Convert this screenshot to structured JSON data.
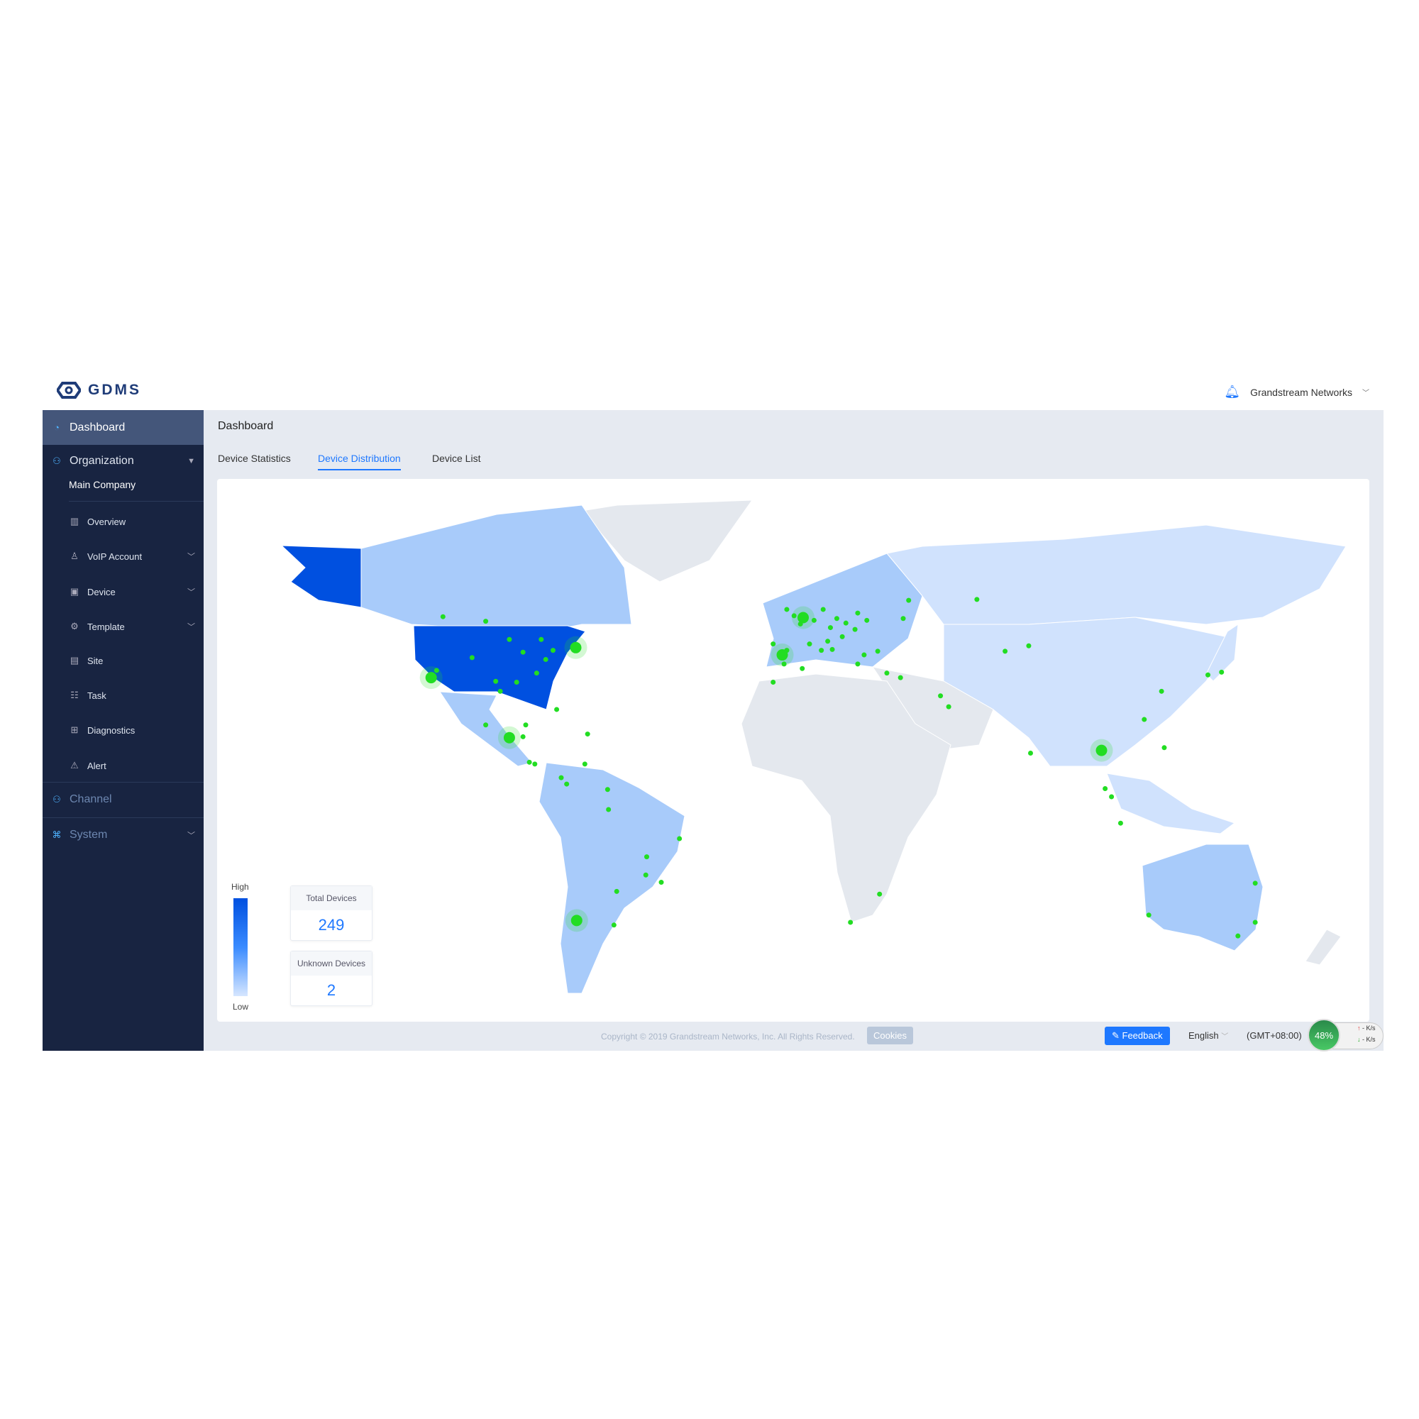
{
  "header": {
    "logo": "GDMS",
    "user": "Grandstream Networks"
  },
  "sidebar": {
    "dashboard": "Dashboard",
    "organization": "Organization",
    "main_company": "Main Company",
    "items": [
      {
        "label": "Overview",
        "icon": "bar-chart-icon"
      },
      {
        "label": "VoIP Account",
        "icon": "user-icon"
      },
      {
        "label": "Device",
        "icon": "device-icon"
      },
      {
        "label": "Template",
        "icon": "gear-icon"
      },
      {
        "label": "Site",
        "icon": "site-icon"
      },
      {
        "label": "Task",
        "icon": "task-icon"
      },
      {
        "label": "Diagnostics",
        "icon": "diagnostics-icon"
      },
      {
        "label": "Alert",
        "icon": "alert-icon"
      }
    ],
    "channel": "Channel",
    "system": "System"
  },
  "main": {
    "title": "Dashboard",
    "tabs": [
      {
        "label": "Device Statistics"
      },
      {
        "label": "Device Distribution",
        "active": true
      },
      {
        "label": "Device List"
      }
    ],
    "legend": {
      "high": "High",
      "low": "Low"
    },
    "stats": {
      "total_label": "Total Devices",
      "total": "249",
      "unknown_label": "Unknown Devices",
      "unknown": "2"
    },
    "colors": {
      "high": "#0050e0",
      "mid": "#a8cbfa",
      "low": "#d0e2fd",
      "none": "#e4e8ee",
      "dot": "#22dd22"
    }
  },
  "footer": {
    "copyright": "Copyright © 2019 Grandstream Networks, Inc. All Rights Reserved.",
    "cookies": "Cookies",
    "feedback": "Feedback",
    "language": "English",
    "timezone": "(GMT+08:00)",
    "cpu": "48%",
    "up": "- K/s",
    "down": "- K/s"
  }
}
